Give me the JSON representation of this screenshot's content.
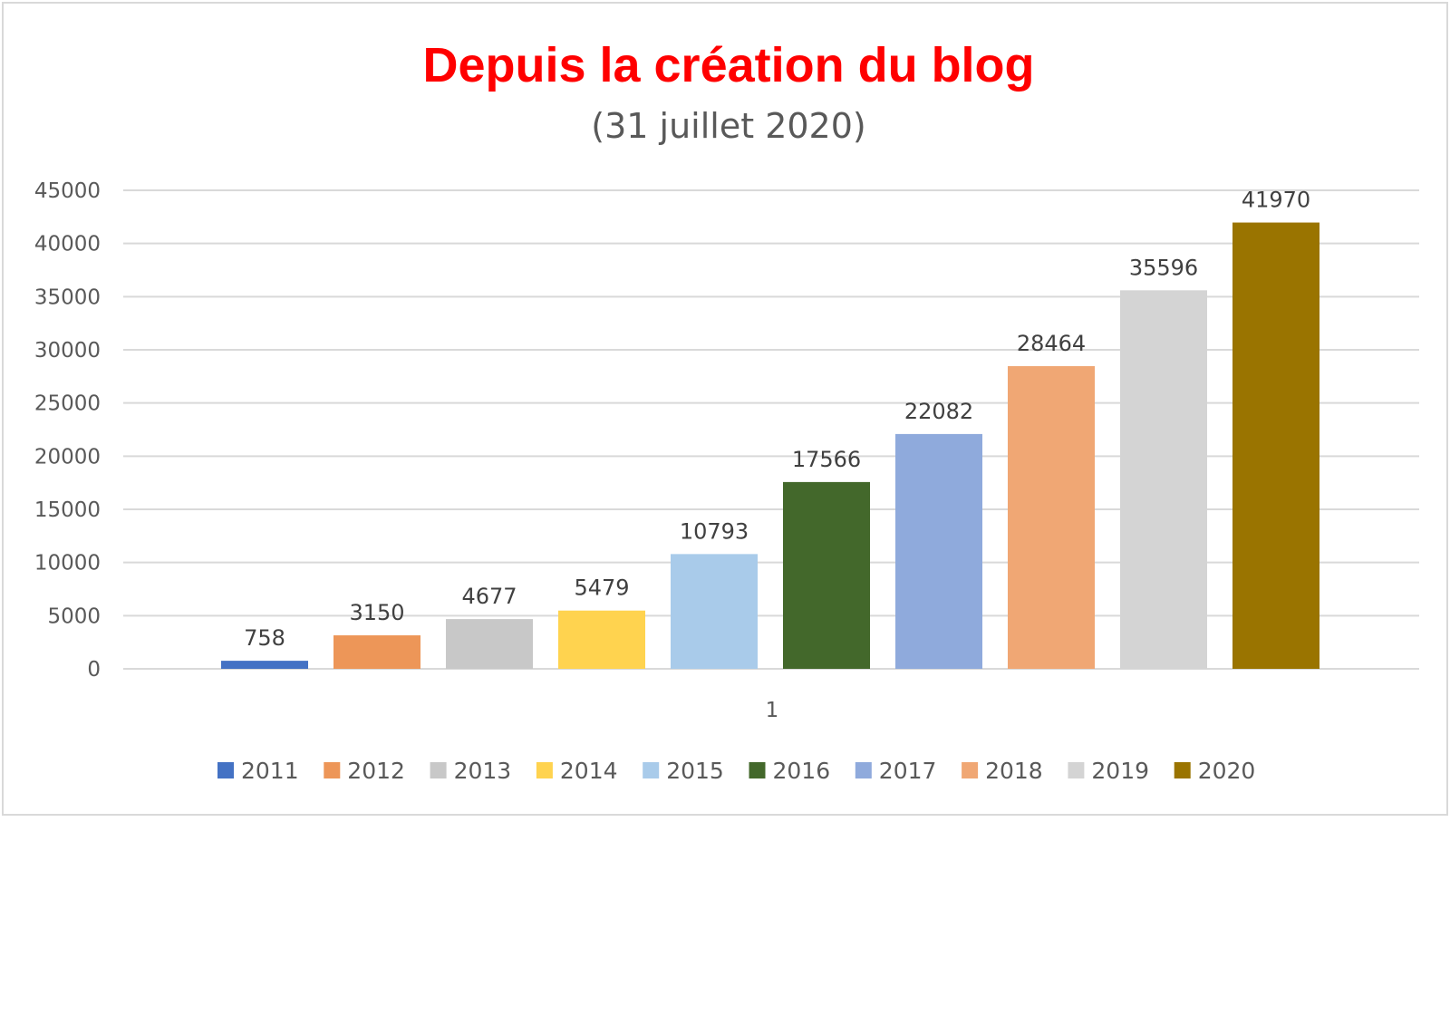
{
  "chart_data": {
    "type": "bar",
    "title": "Depuis la création du blog",
    "subtitle": "(31 juillet 2020)",
    "title_color": "#ff0000",
    "categories": [
      "1"
    ],
    "series": [
      {
        "name": "2011",
        "values": [
          758
        ],
        "color": "#4472c4"
      },
      {
        "name": "2012",
        "values": [
          3150
        ],
        "color": "#ed9658"
      },
      {
        "name": "2013",
        "values": [
          4677
        ],
        "color": "#c8c8c8"
      },
      {
        "name": "2014",
        "values": [
          5479
        ],
        "color": "#ffd34f"
      },
      {
        "name": "2015",
        "values": [
          10793
        ],
        "color": "#a9cbea"
      },
      {
        "name": "2016",
        "values": [
          17566
        ],
        "color": "#43682b"
      },
      {
        "name": "2017",
        "values": [
          22082
        ],
        "color": "#8faadc"
      },
      {
        "name": "2018",
        "values": [
          28464
        ],
        "color": "#f0a774"
      },
      {
        "name": "2019",
        "values": [
          35596
        ],
        "color": "#d4d4d4"
      },
      {
        "name": "2020",
        "values": [
          41970
        ],
        "color": "#9a7400"
      }
    ],
    "data_labels": [
      "758",
      "3150",
      "4677",
      "5479",
      "10793",
      "17566",
      "22082",
      "28464",
      "35596",
      "41970"
    ],
    "y_ticks": [
      "0",
      "5000",
      "10000",
      "15000",
      "20000",
      "25000",
      "30000",
      "35000",
      "40000",
      "45000"
    ],
    "ylim": [
      0,
      45000
    ],
    "grid": true,
    "legend_position": "bottom",
    "gridline_color": "#d9d9d9"
  }
}
